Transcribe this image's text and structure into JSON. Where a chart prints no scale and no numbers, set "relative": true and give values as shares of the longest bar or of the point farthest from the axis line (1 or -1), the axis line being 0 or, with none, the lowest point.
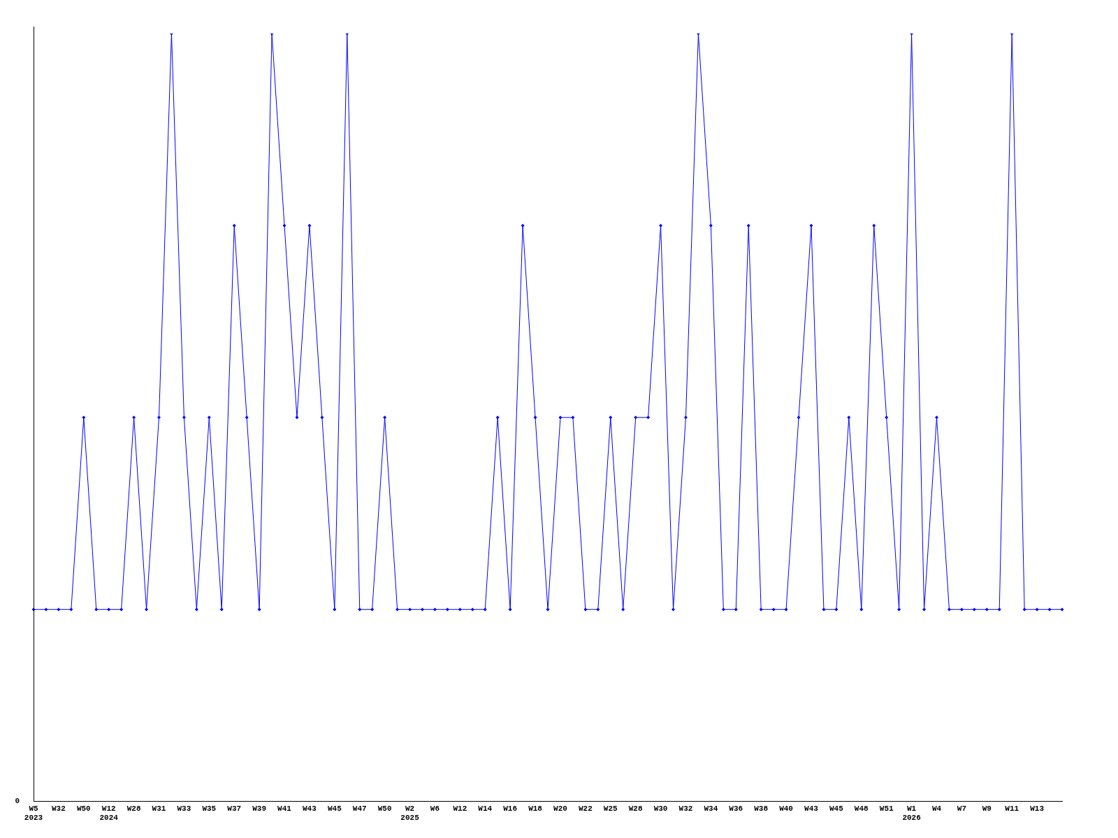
{
  "chart_data": {
    "type": "line",
    "relative": true,
    "grid": false,
    "legend": false,
    "marker": "diamond",
    "line_style": "solid",
    "categories": [
      "W5\n2023",
      null,
      "W32",
      null,
      "W50",
      null,
      "W12\n2024",
      null,
      "W28",
      null,
      "W31",
      null,
      "W33",
      null,
      "W35",
      null,
      "W37",
      null,
      "W39",
      null,
      "W41",
      null,
      "W43",
      null,
      "W45",
      null,
      "W47",
      null,
      "W50",
      null,
      "W2\n2025",
      null,
      "W6",
      null,
      "W12",
      null,
      "W14",
      null,
      "W16",
      null,
      "W18",
      null,
      "W20",
      null,
      "W22",
      null,
      "W25",
      null,
      "W28",
      null,
      "W30",
      null,
      "W32",
      null,
      "W34",
      null,
      "W36",
      null,
      "W38",
      null,
      "W40",
      null,
      "W43",
      null,
      "W45",
      null,
      "W48",
      null,
      "W51",
      null,
      "W1\n2026",
      null,
      "W4",
      null,
      "W7",
      null,
      "W9",
      null,
      "W11",
      null,
      "W13",
      null,
      null
    ],
    "series": [
      {
        "color": "#0000ff",
        "values": [
          0.25,
          0.25,
          0.25,
          0.25,
          0.5,
          0.25,
          0.25,
          0.25,
          0.5,
          0.25,
          0.5,
          1,
          0.5,
          0.25,
          0.5,
          0.25,
          0.75,
          0.5,
          0.25,
          1,
          0.75,
          0.5,
          0.75,
          0.5,
          0.25,
          1,
          0.25,
          0.25,
          0.5,
          0.25,
          0.25,
          0.25,
          0.25,
          0.25,
          0.25,
          0.25,
          0.25,
          0.5,
          0.25,
          0.75,
          0.5,
          0.25,
          0.5,
          0.5,
          0.25,
          0.25,
          0.5,
          0.25,
          0.5,
          0.5,
          0.75,
          0.25,
          0.5,
          1,
          0.75,
          0.25,
          0.25,
          0.75,
          0.25,
          0.25,
          0.25,
          0.5,
          0.75,
          0.25,
          0.25,
          0.5,
          0.25,
          0.75,
          0.5,
          0.25,
          1,
          0.25,
          0.5,
          0.25,
          0.25,
          0.25,
          0.25,
          0.25,
          1,
          0.25,
          0.25,
          0.25,
          0.25
        ]
      }
    ],
    "annotations": [
      "0"
    ]
  }
}
